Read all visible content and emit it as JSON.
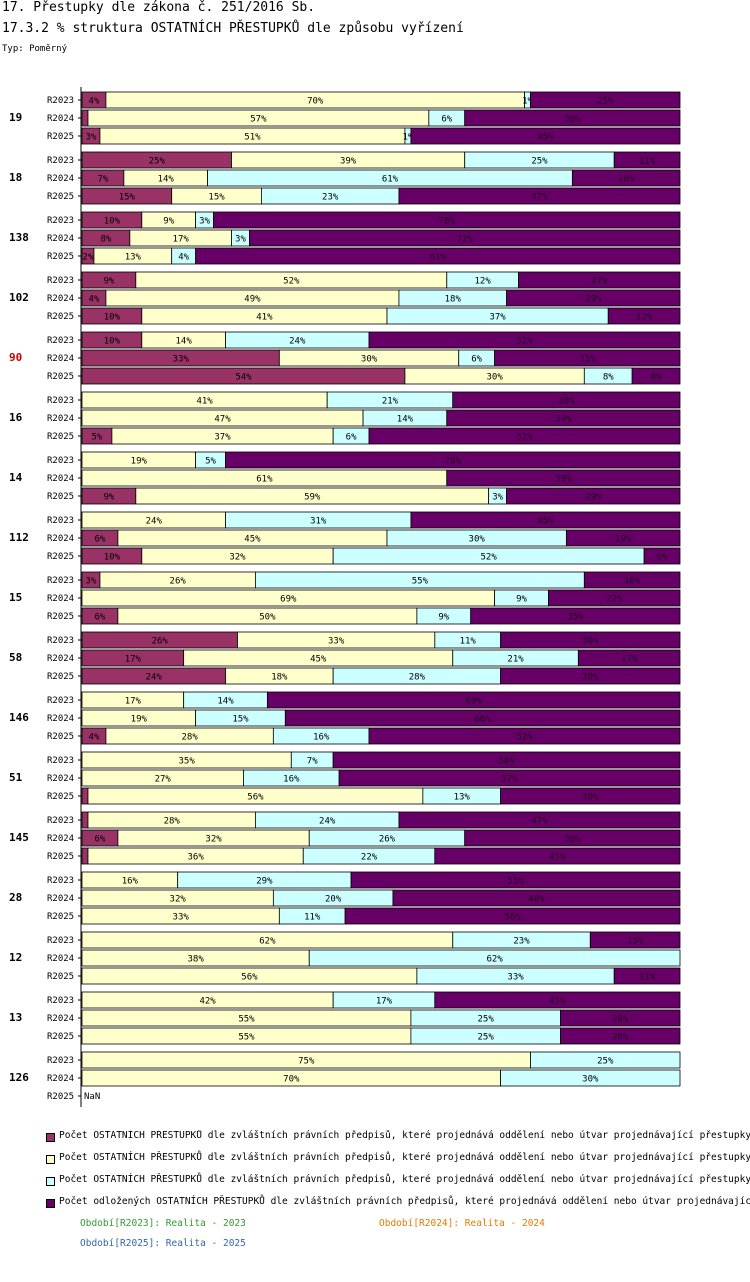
{
  "header": {
    "title": "17. Přestupky dle zákona č. 251/2016 Sb.",
    "subtitle": "17.3.2 % struktura OSTATNÍCH PŘESTUPKŮ dle způsobu vyřízení",
    "type_label": "Typ: Poměrný"
  },
  "colors": {
    "s1": "#993366",
    "s2": "#ffffcc",
    "s3": "#ccffff",
    "s4": "#660066",
    "highlight": "#cc0000",
    "p2023": "#339933",
    "p2024": "#e07b00",
    "p2025": "#3366aa"
  },
  "legend": [
    {
      "label": "Počet OSTATNÍCH PŘESTUPKŮ dle zvláštních právních předpisů, které projednává oddělení nebo útvar projednávající přestupky",
      "color": "#993366"
    },
    {
      "label": "Počet OSTATNÍCH PŘESTUPKŮ dle zvláštních právních předpisů, které projednává oddělení nebo útvar projednávající přestupky",
      "color": "#ffffcc"
    },
    {
      "label": "Počet OSTATNÍCH PŘESTUPKŮ dle zvláštních právních předpisů, které projednává oddělení nebo útvar projednávající přestupky",
      "color": "#ccffff"
    },
    {
      "label": "Počet odložených OSTATNÍCH PŘESTUPKŮ dle zvláštních právních předpisů, které projednává oddělení nebo útvar projednávající přestupky",
      "color": "#660066"
    }
  ],
  "periods": [
    {
      "label": "Období[R2023]: Realita - 2023",
      "color": "#339933"
    },
    {
      "label": "Období[R2024]: Realita - 2024",
      "color": "#e07b00"
    },
    {
      "label": "Období[R2025]: Realita - 2025",
      "color": "#3366aa"
    }
  ],
  "chart_data": {
    "type": "bar",
    "orientation": "horizontal",
    "stacked": "percent",
    "xlim": [
      0,
      100
    ],
    "nan_label": "NaN",
    "groups": [
      {
        "label": "19",
        "highlight": false,
        "rows": [
          {
            "period": "R2023",
            "values": [
              4,
              70,
              1,
              25
            ],
            "labels": [
              "4%",
              "70%",
              "1%",
              "25%"
            ]
          },
          {
            "period": "R2024",
            "values": [
              1,
              57,
              6,
              36
            ],
            "labels": [
              "",
              "57%",
              "6%",
              "36%"
            ]
          },
          {
            "period": "R2025",
            "values": [
              3,
              51,
              1,
              45
            ],
            "labels": [
              "3%",
              "51%",
              "1%",
              "45%"
            ]
          }
        ]
      },
      {
        "label": "18",
        "highlight": false,
        "rows": [
          {
            "period": "R2023",
            "values": [
              25,
              39,
              25,
              11
            ],
            "labels": [
              "25%",
              "39%",
              "25%",
              "11%"
            ]
          },
          {
            "period": "R2024",
            "values": [
              7,
              14,
              61,
              18
            ],
            "labels": [
              "7%",
              "14%",
              "61%",
              "18%"
            ]
          },
          {
            "period": "R2025",
            "values": [
              15,
              15,
              23,
              47
            ],
            "labels": [
              "15%",
              "15%",
              "23%",
              "47%"
            ]
          }
        ]
      },
      {
        "label": "138",
        "highlight": false,
        "rows": [
          {
            "period": "R2023",
            "values": [
              10,
              9,
              3,
              78
            ],
            "labels": [
              "10%",
              "9%",
              "3%",
              "78%"
            ]
          },
          {
            "period": "R2024",
            "values": [
              8,
              17,
              3,
              72
            ],
            "labels": [
              "8%",
              "17%",
              "3%",
              "72%"
            ]
          },
          {
            "period": "R2025",
            "values": [
              2,
              13,
              4,
              81
            ],
            "labels": [
              "2%",
              "13%",
              "4%",
              "81%"
            ]
          }
        ]
      },
      {
        "label": "102",
        "highlight": false,
        "rows": [
          {
            "period": "R2023",
            "values": [
              9,
              52,
              12,
              27
            ],
            "labels": [
              "9%",
              "52%",
              "12%",
              "27%"
            ]
          },
          {
            "period": "R2024",
            "values": [
              4,
              49,
              18,
              29
            ],
            "labels": [
              "4%",
              "49%",
              "18%",
              "29%"
            ]
          },
          {
            "period": "R2025",
            "values": [
              10,
              41,
              37,
              12
            ],
            "labels": [
              "10%",
              "41%",
              "37%",
              "12%"
            ]
          }
        ]
      },
      {
        "label": "90",
        "highlight": true,
        "rows": [
          {
            "period": "R2023",
            "values": [
              10,
              14,
              24,
              52
            ],
            "labels": [
              "10%",
              "14%",
              "24%",
              "52%"
            ]
          },
          {
            "period": "R2024",
            "values": [
              33,
              30,
              6,
              31
            ],
            "labels": [
              "33%",
              "30%",
              "6%",
              "31%"
            ]
          },
          {
            "period": "R2025",
            "values": [
              54,
              30,
              8,
              8
            ],
            "labels": [
              "54%",
              "30%",
              "8%",
              "8%"
            ]
          }
        ]
      },
      {
        "label": "16",
        "highlight": false,
        "rows": [
          {
            "period": "R2023",
            "values": [
              0,
              41,
              21,
              38
            ],
            "labels": [
              "",
              "41%",
              "21%",
              "38%"
            ]
          },
          {
            "period": "R2024",
            "values": [
              0,
              47,
              14,
              39
            ],
            "labels": [
              "",
              "47%",
              "14%",
              "39%"
            ]
          },
          {
            "period": "R2025",
            "values": [
              5,
              37,
              6,
              52
            ],
            "labels": [
              "5%",
              "37%",
              "6%",
              "52%"
            ]
          }
        ]
      },
      {
        "label": "14",
        "highlight": false,
        "rows": [
          {
            "period": "R2023",
            "values": [
              0,
              19,
              5,
              76
            ],
            "labels": [
              "",
              "19%",
              "5%",
              "76%"
            ]
          },
          {
            "period": "R2024",
            "values": [
              0,
              61,
              0,
              39
            ],
            "labels": [
              "",
              "61%",
              "",
              "39%"
            ]
          },
          {
            "period": "R2025",
            "values": [
              9,
              59,
              3,
              29
            ],
            "labels": [
              "9%",
              "59%",
              "3%",
              "29%"
            ]
          }
        ]
      },
      {
        "label": "112",
        "highlight": false,
        "rows": [
          {
            "period": "R2023",
            "values": [
              0,
              24,
              31,
              45
            ],
            "labels": [
              "",
              "24%",
              "31%",
              "45%"
            ]
          },
          {
            "period": "R2024",
            "values": [
              6,
              45,
              30,
              19
            ],
            "labels": [
              "6%",
              "45%",
              "30%",
              "19%"
            ]
          },
          {
            "period": "R2025",
            "values": [
              10,
              32,
              52,
              6
            ],
            "labels": [
              "10%",
              "32%",
              "52%",
              "6%"
            ]
          }
        ]
      },
      {
        "label": "15",
        "highlight": false,
        "rows": [
          {
            "period": "R2023",
            "values": [
              3,
              26,
              55,
              16
            ],
            "labels": [
              "3%",
              "26%",
              "55%",
              "16%"
            ]
          },
          {
            "period": "R2024",
            "values": [
              0,
              69,
              9,
              22
            ],
            "labels": [
              "",
              "69%",
              "9%",
              "22%"
            ]
          },
          {
            "period": "R2025",
            "values": [
              6,
              50,
              9,
              35
            ],
            "labels": [
              "6%",
              "50%",
              "9%",
              "35%"
            ]
          }
        ]
      },
      {
        "label": "58",
        "highlight": false,
        "rows": [
          {
            "period": "R2023",
            "values": [
              26,
              33,
              11,
              30
            ],
            "labels": [
              "26%",
              "33%",
              "11%",
              "30%"
            ]
          },
          {
            "period": "R2024",
            "values": [
              17,
              45,
              21,
              17
            ],
            "labels": [
              "17%",
              "45%",
              "21%",
              "17%"
            ]
          },
          {
            "period": "R2025",
            "values": [
              24,
              18,
              28,
              30
            ],
            "labels": [
              "24%",
              "18%",
              "28%",
              "30%"
            ]
          }
        ]
      },
      {
        "label": "146",
        "highlight": false,
        "rows": [
          {
            "period": "R2023",
            "values": [
              0,
              17,
              14,
              69
            ],
            "labels": [
              "",
              "17%",
              "14%",
              "69%"
            ]
          },
          {
            "period": "R2024",
            "values": [
              0,
              19,
              15,
              66
            ],
            "labels": [
              "",
              "19%",
              "15%",
              "66%"
            ]
          },
          {
            "period": "R2025",
            "values": [
              4,
              28,
              16,
              52
            ],
            "labels": [
              "4%",
              "28%",
              "16%",
              "52%"
            ]
          }
        ]
      },
      {
        "label": "51",
        "highlight": false,
        "rows": [
          {
            "period": "R2023",
            "values": [
              0,
              35,
              7,
              58
            ],
            "labels": [
              "",
              "35%",
              "7%",
              "58%"
            ]
          },
          {
            "period": "R2024",
            "values": [
              0,
              27,
              16,
              57
            ],
            "labels": [
              "",
              "27%",
              "16%",
              "57%"
            ]
          },
          {
            "period": "R2025",
            "values": [
              1,
              56,
              13,
              30
            ],
            "labels": [
              "",
              "56%",
              "13%",
              "30%"
            ]
          }
        ]
      },
      {
        "label": "145",
        "highlight": false,
        "rows": [
          {
            "period": "R2023",
            "values": [
              1,
              28,
              24,
              47
            ],
            "labels": [
              "",
              "28%",
              "24%",
              "47%"
            ]
          },
          {
            "period": "R2024",
            "values": [
              6,
              32,
              26,
              36
            ],
            "labels": [
              "6%",
              "32%",
              "26%",
              "36%"
            ]
          },
          {
            "period": "R2025",
            "values": [
              1,
              36,
              22,
              41
            ],
            "labels": [
              "",
              "36%",
              "22%",
              "41%"
            ]
          }
        ]
      },
      {
        "label": "28",
        "highlight": false,
        "rows": [
          {
            "period": "R2023",
            "values": [
              0,
              16,
              29,
              55
            ],
            "labels": [
              "",
              "16%",
              "29%",
              "55%"
            ]
          },
          {
            "period": "R2024",
            "values": [
              0,
              32,
              20,
              48
            ],
            "labels": [
              "",
              "32%",
              "20%",
              "48%"
            ]
          },
          {
            "period": "R2025",
            "values": [
              0,
              33,
              11,
              56
            ],
            "labels": [
              "",
              "33%",
              "11%",
              "56%"
            ]
          }
        ]
      },
      {
        "label": "12",
        "highlight": false,
        "rows": [
          {
            "period": "R2023",
            "values": [
              0,
              62,
              23,
              15
            ],
            "labels": [
              "",
              "62%",
              "23%",
              "15%"
            ]
          },
          {
            "period": "R2024",
            "values": [
              0,
              38,
              62,
              0
            ],
            "labels": [
              "",
              "38%",
              "62%",
              ""
            ]
          },
          {
            "period": "R2025",
            "values": [
              0,
              56,
              33,
              11
            ],
            "labels": [
              "",
              "56%",
              "33%",
              "11%"
            ]
          }
        ]
      },
      {
        "label": "13",
        "highlight": false,
        "rows": [
          {
            "period": "R2023",
            "values": [
              0,
              42,
              17,
              41
            ],
            "labels": [
              "",
              "42%",
              "17%",
              "41%"
            ]
          },
          {
            "period": "R2024",
            "values": [
              0,
              55,
              25,
              20
            ],
            "labels": [
              "",
              "55%",
              "25%",
              "20%"
            ]
          },
          {
            "period": "R2025",
            "values": [
              0,
              55,
              25,
              20
            ],
            "labels": [
              "",
              "55%",
              "25%",
              "20%"
            ]
          }
        ]
      },
      {
        "label": "126",
        "highlight": false,
        "rows": [
          {
            "period": "R2023",
            "values": [
              0,
              75,
              25,
              0
            ],
            "labels": [
              "",
              "75%",
              "25%",
              ""
            ]
          },
          {
            "period": "R2024",
            "values": [
              0,
              70,
              30,
              0
            ],
            "labels": [
              "",
              "70%",
              "30%",
              ""
            ]
          },
          {
            "period": "R2025",
            "values": null,
            "labels": []
          }
        ]
      }
    ]
  }
}
